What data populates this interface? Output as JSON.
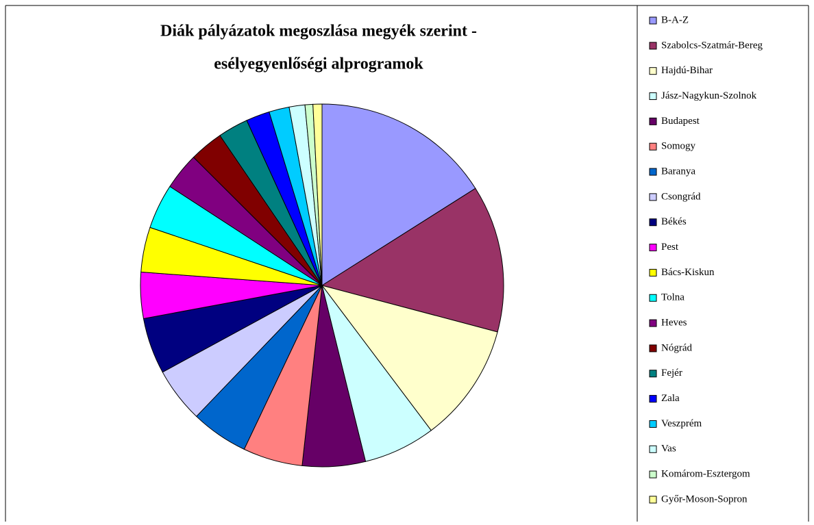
{
  "chart_data": {
    "type": "pie",
    "title": [
      "Diák pályázatok megoszlása megyék szerint -",
      "esélyegyenlőségi alprogramok"
    ],
    "categories": [
      "B-A-Z",
      "Szabolcs-Szatmár-Bereg",
      "Hajdú-Bihar",
      "Jász-Nagykun-Szolnok",
      "Budapest",
      "Somogy",
      "Baranya",
      "Csongrád",
      "Békés",
      "Pest",
      "Bács-Kiskun",
      "Tolna",
      "Heves",
      "Nógrád",
      "Fejér",
      "Zala",
      "Veszprém",
      "Vas",
      "Komárom-Esztergom",
      "Győr-Moson-Sopron"
    ],
    "values": [
      16,
      13.1,
      10.6,
      6.4,
      5.6,
      5.3,
      5.1,
      4.9,
      5,
      4.1,
      4,
      4,
      3.3,
      3,
      2.7,
      2.1,
      1.8,
      1.4,
      0.7,
      0.8
    ],
    "colors": [
      "#9999ff",
      "#993366",
      "#ffffcc",
      "#ccffff",
      "#660066",
      "#ff8080",
      "#0066cc",
      "#ccccff",
      "#000080",
      "#ff00ff",
      "#ffff00",
      "#00ffff",
      "#800080",
      "#800000",
      "#008080",
      "#0000ff",
      "#00ccff",
      "#ccffff",
      "#ccffcc",
      "#ffff99"
    ],
    "legend": "right"
  }
}
